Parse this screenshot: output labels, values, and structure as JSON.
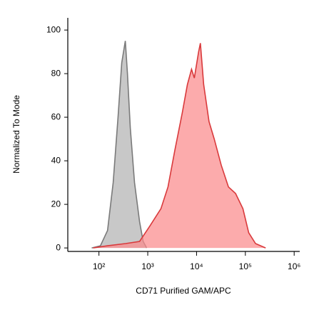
{
  "chart_data": {
    "type": "histogram-overlay",
    "x_label": "CD71 Purified GAM/APC",
    "y_label": "Normalized To Mode",
    "x_log": true,
    "xlim": [
      23,
      1300000
    ],
    "ylim": [
      -1.6,
      105.6
    ],
    "xticks": [
      {
        "value": 100,
        "label": "10²"
      },
      {
        "value": 1000,
        "label": "10³"
      },
      {
        "value": 10000,
        "label": "10⁴"
      },
      {
        "value": 100000,
        "label": "10⁵"
      },
      {
        "value": 1000000,
        "label": "10⁶"
      }
    ],
    "yticks": [
      0,
      20,
      40,
      60,
      80,
      100
    ],
    "series": [
      {
        "color": "#7a7a7a",
        "fill": "#b3b3b3",
        "x": [
          71,
          107,
          150,
          196,
          246,
          293,
          347,
          384,
          439,
          536,
          680,
          804,
          950
        ],
        "values": [
          0,
          1,
          8,
          30,
          60,
          85,
          95,
          80,
          55,
          30,
          12,
          3,
          0
        ]
      },
      {
        "color": "#d9393b",
        "fill": "#fb8a8c",
        "x": [
          76,
          150,
          350,
          680,
          1100,
          1860,
          2600,
          3600,
          5100,
          6500,
          7900,
          9000,
          11000,
          12000,
          14000,
          18000,
          23000,
          32000,
          45000,
          63000,
          89000,
          117000,
          162000,
          260000
        ],
        "values": [
          0,
          1,
          2,
          3,
          10,
          18,
          28,
          45,
          62,
          75,
          82,
          78,
          90,
          94,
          75,
          58,
          50,
          38,
          28,
          25,
          18,
          7,
          2,
          0
        ]
      }
    ]
  }
}
